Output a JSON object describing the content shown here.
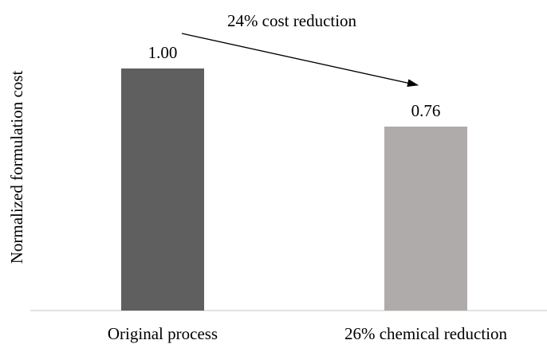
{
  "chart_data": {
    "type": "bar",
    "categories": [
      "Original process",
      "26% chemical reduction"
    ],
    "values": [
      1.0,
      0.76
    ],
    "data_labels": [
      "1.00",
      "0.76"
    ],
    "bar_colors": [
      "#5f5f5f",
      "#afabab"
    ],
    "title": "",
    "xlabel": "",
    "ylabel": "Normalized formulation cost",
    "ylim": [
      0,
      1.0
    ],
    "grid": false,
    "legend": "none",
    "annotation": {
      "text": "24% cost reduction",
      "from_category": 0,
      "to_category": 1
    }
  }
}
